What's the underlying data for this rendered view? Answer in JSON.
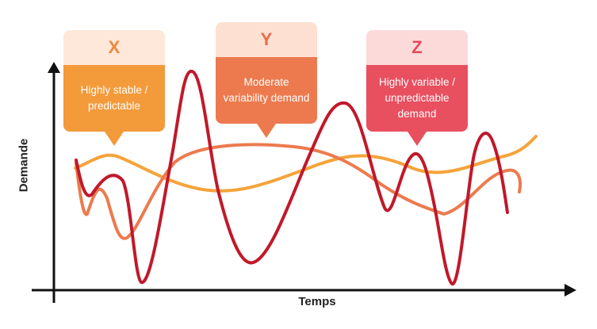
{
  "axes": {
    "y_label": "Demande",
    "x_label": "Temps"
  },
  "callouts": {
    "x": {
      "letter": "X",
      "text": "Highly stable / predictable"
    },
    "y": {
      "letter": "Y",
      "text": "Moderate variability demand"
    },
    "z": {
      "letter": "Z",
      "text": "Highly variable / unpredictable demand"
    }
  },
  "colors": {
    "x_curve": "#f5a33a",
    "y_curve": "#ec7a4e",
    "z_curve": "#c0192b",
    "axis": "#111111"
  }
}
